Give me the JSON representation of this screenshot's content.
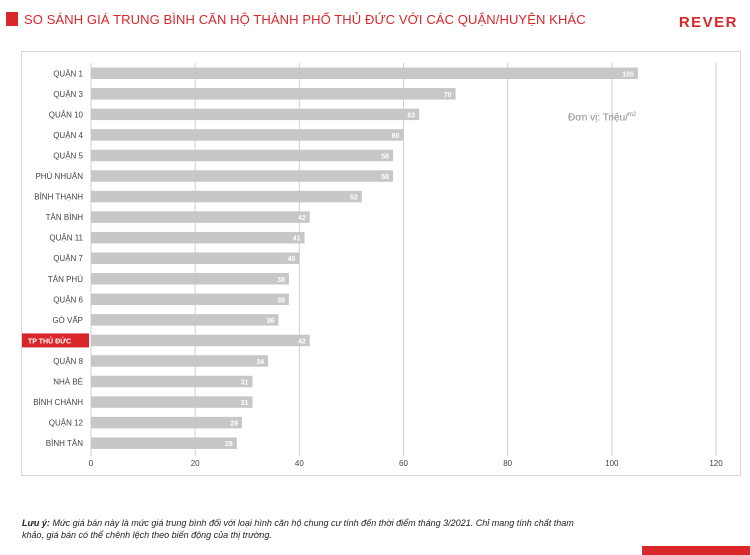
{
  "header": {
    "title": "SO SÁNH GIÁ TRUNG BÌNH CĂN HỘ THÀNH PHỐ THỦ ĐỨC VỚI CÁC QUẬN/HUYỆN KHÁC",
    "brand": "REVER"
  },
  "unit_label": "Đơn vị: Triệu/",
  "unit_sup": "m2",
  "note": {
    "label": "Lưu ý:",
    "text": "Mức giá bán này là mức giá trung bình đối với loại hình căn hộ chung cư tính đến thời điểm tháng 3/2021. Chỉ mang tính chất tham khảo, giá bán có thể chênh lệch theo biến động của thị trường."
  },
  "colors": {
    "accent": "#d9262b",
    "bar": "#c7c7c7",
    "grid": "#d0d0d0",
    "text": "#444444"
  },
  "chart_data": {
    "type": "bar",
    "orientation": "horizontal",
    "categories": [
      "QUẬN 1",
      "QUẬN 3",
      "QUẬN 10",
      "QUẬN 4",
      "QUẬN 5",
      "PHÚ NHUẬN",
      "BÌNH THẠNH",
      "TÂN BÌNH",
      "QUẬN 11",
      "QUẬN 7",
      "TÂN PHÚ",
      "QUẬN 6",
      "GÒ VẤP",
      "TP THỦ ĐỨC",
      "QUẬN 8",
      "NHÀ BÈ",
      "BÌNH CHÁNH",
      "QUẬN 12",
      "BÌNH TÂN"
    ],
    "values": [
      105,
      70,
      63,
      60,
      58,
      58,
      52,
      42,
      41,
      40,
      38,
      38,
      36,
      42,
      34,
      31,
      31,
      29,
      28
    ],
    "highlight": "TP THỦ ĐỨC",
    "xlim": [
      0,
      120
    ],
    "xticks": [
      0,
      20,
      40,
      60,
      80,
      100,
      120
    ],
    "grid": true,
    "data_labels": true
  }
}
